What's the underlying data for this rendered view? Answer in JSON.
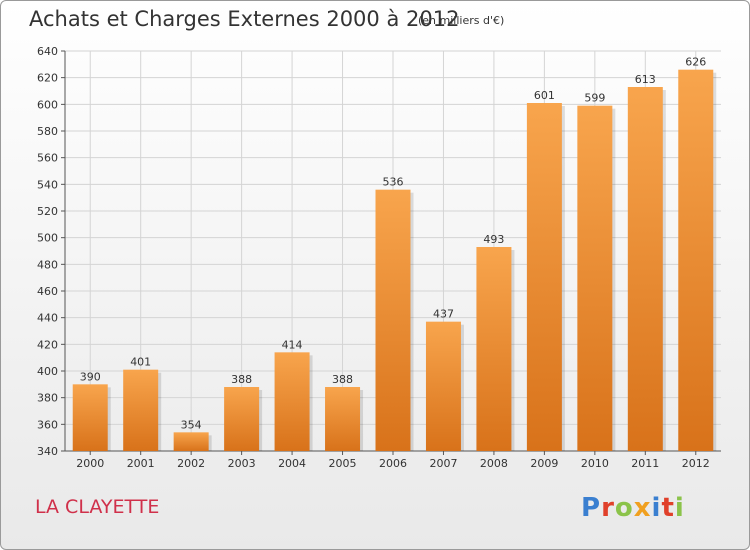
{
  "header": {
    "title": "Achats et Charges Externes 2000 à 2012",
    "subtitle": "(en milliers d'€)"
  },
  "footer": {
    "commune": "LA CLAYETTE",
    "logo_text": "Proxiti"
  },
  "colors": {
    "bar_top": "#f8a54d",
    "bar_bottom": "#d8721a",
    "commune_text": "#d0304a",
    "logo_letters": [
      "#3a7fd0",
      "#e0402a",
      "#8bc34a",
      "#f0a020",
      "#3a7fd0",
      "#e0402a",
      "#8bc34a"
    ]
  },
  "chart_data": {
    "type": "bar",
    "title": "Achats et Charges Externes 2000 à 2012",
    "subtitle": "(en milliers d'€)",
    "categories": [
      "2000",
      "2001",
      "2002",
      "2003",
      "2004",
      "2005",
      "2006",
      "2007",
      "2008",
      "2009",
      "2010",
      "2011",
      "2012"
    ],
    "values": [
      390,
      401,
      354,
      388,
      414,
      388,
      536,
      437,
      493,
      601,
      599,
      613,
      626
    ],
    "ylim": [
      340,
      640
    ],
    "yticks": [
      340,
      360,
      380,
      400,
      420,
      440,
      460,
      480,
      500,
      520,
      540,
      560,
      580,
      600,
      620,
      640
    ],
    "grid": true,
    "xlabel": "",
    "ylabel": ""
  }
}
